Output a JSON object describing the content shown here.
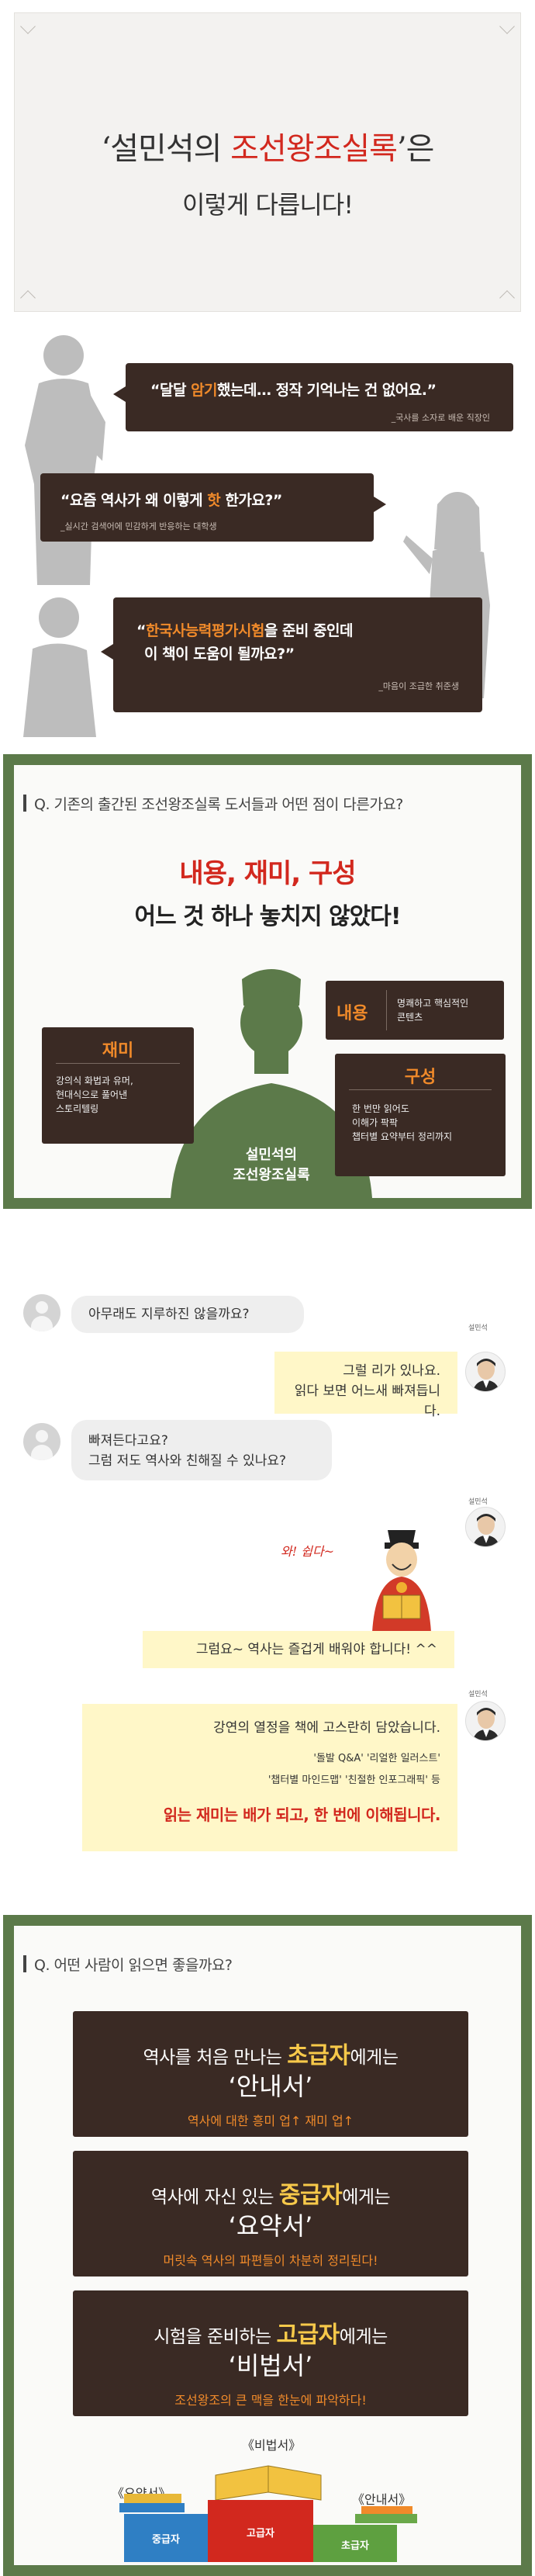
{
  "title_card": {
    "line1_open": "‘설민석의 ",
    "line1_red": "조선왕조실록",
    "line1_close": "’은",
    "line2": "이렇게 다릅니다!"
  },
  "bubbles": [
    {
      "pre": "“달달 ",
      "hl": "암기",
      "post": "했는데… 정작 기억나는 건 없어요.”",
      "speaker": "_국사를 소자로 배운 직장인"
    },
    {
      "pre": "“요즘 역사가 왜 이렇게 ",
      "hl": "핫",
      "post": " 한가요?”",
      "speaker": "_실시간 검색어에 민감하게 반응하는 대학생"
    },
    {
      "pre": "“",
      "hl": "한국사능력평가시험",
      "post": "을 준비 중인데",
      "line2": "이 책이 도움이 될까요?”",
      "speaker": "_마음이 조급한 취준생"
    }
  ],
  "diff": {
    "question": "Q. 기존의 출간된 조선왕조실록 도서들과 어떤 점이 다른가요?",
    "headline_red": "내용, 재미, 구성",
    "headline_black": "어느 것 하나 놓치지 않았다!",
    "center_label": [
      "설민석의",
      "조선왕조실록"
    ],
    "content": {
      "title": "내용",
      "desc": [
        "명쾌하고 핵심적인",
        "콘텐츠"
      ]
    },
    "fun": {
      "title": "재미",
      "desc": [
        "강의식 화법과 유머,",
        "현대식으로 풀어낸",
        "스토리텔링"
      ]
    },
    "structure": {
      "title": "구성",
      "desc": [
        "한 번만 읽어도",
        "이해가 팍팍",
        "챕터별 요약부터 정리까지"
      ]
    }
  },
  "chat": {
    "msg1": "아무래도 지루하진 않을까요?",
    "author_tag": "설민석",
    "msg2": [
      "그럴 리가 있나요.",
      "읽다 보면 어느새 빠져듭니다."
    ],
    "msg3": [
      "빠져든다고요?",
      "그럼 저도 역사와 친해질 수 있나요?"
    ],
    "scribble": "와! 쉽다~",
    "msg4": "그럼요~ 역사는 즐겁게 배워야 합니다! ^^",
    "msg5_line1": "강연의 열정을 책에 고스란히 담았습니다.",
    "msg5_line2": "'돌발 Q&A' '리얼한 일러스트'",
    "msg5_line3": "'챕터별 마인드맵' '친절한 인포그래픽' 등",
    "msg5_red1": "읽는 재미는 배가 되고, ",
    "msg5_red2": "한 번에 이해됩니다."
  },
  "who": {
    "question": "Q. 어떤 사람이 읽으면 좋을까요?",
    "boxes": [
      {
        "pre": "역사를 처음 만나는 ",
        "level": "초급자",
        "post": "에게는",
        "book": "‘안내서’",
        "benefit": "역사에 대한 흥미 업↑ 재미 업↑"
      },
      {
        "pre": "역사에 자신 있는 ",
        "level": "중급자",
        "post": "에게는",
        "book": "‘요약서’",
        "benefit": "머릿속 역사의 파편들이 차분히 정리된다!"
      },
      {
        "pre": "시험을 준비하는 ",
        "level": "고급자",
        "post": "에게는",
        "book": "‘비법서’",
        "benefit": "조선왕조의 큰 맥을 한눈에 파악하다!"
      }
    ],
    "podium": {
      "top_label": "《비법서》",
      "left_label": "《요약서》",
      "right_label": "《안내서》",
      "left_step": "중급자",
      "center_step": "고급자",
      "right_step": "초급자"
    }
  },
  "colors": {
    "dark_brown": "#3a2a24",
    "accent_orange": "#f08a2a",
    "accent_red": "#d2281e",
    "frame_green": "#5c7a4a",
    "highlight_yellow": "#fff7c8"
  }
}
